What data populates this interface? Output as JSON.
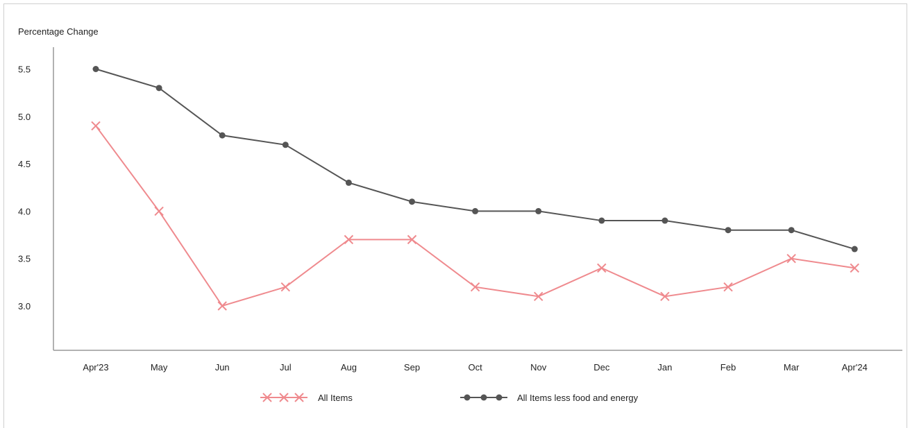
{
  "chart_data": {
    "type": "line",
    "title": "",
    "ylabel": "Percentage Change",
    "xlabel": "",
    "categories": [
      "Apr'23",
      "May",
      "Jun",
      "Jul",
      "Aug",
      "Sep",
      "Oct",
      "Nov",
      "Dec",
      "Jan",
      "Feb",
      "Mar",
      "Apr'24"
    ],
    "ylim": [
      2.5,
      5.75
    ],
    "yticks": [
      "3.0",
      "3.5",
      "4.0",
      "4.5",
      "5.0",
      "5.5"
    ],
    "grid": false,
    "legend_position": "bottom",
    "series": [
      {
        "name": "All Items",
        "color": "#ef8a8e",
        "marker": "x",
        "values": [
          4.9,
          4.0,
          3.0,
          3.2,
          3.7,
          3.7,
          3.2,
          3.1,
          3.4,
          3.1,
          3.2,
          3.5,
          3.4
        ]
      },
      {
        "name": "All Items less food and energy",
        "color": "#555555",
        "marker": "circle",
        "values": [
          5.5,
          5.3,
          4.8,
          4.7,
          4.3,
          4.1,
          4.0,
          4.0,
          3.9,
          3.9,
          3.8,
          3.8,
          3.6
        ]
      }
    ]
  }
}
